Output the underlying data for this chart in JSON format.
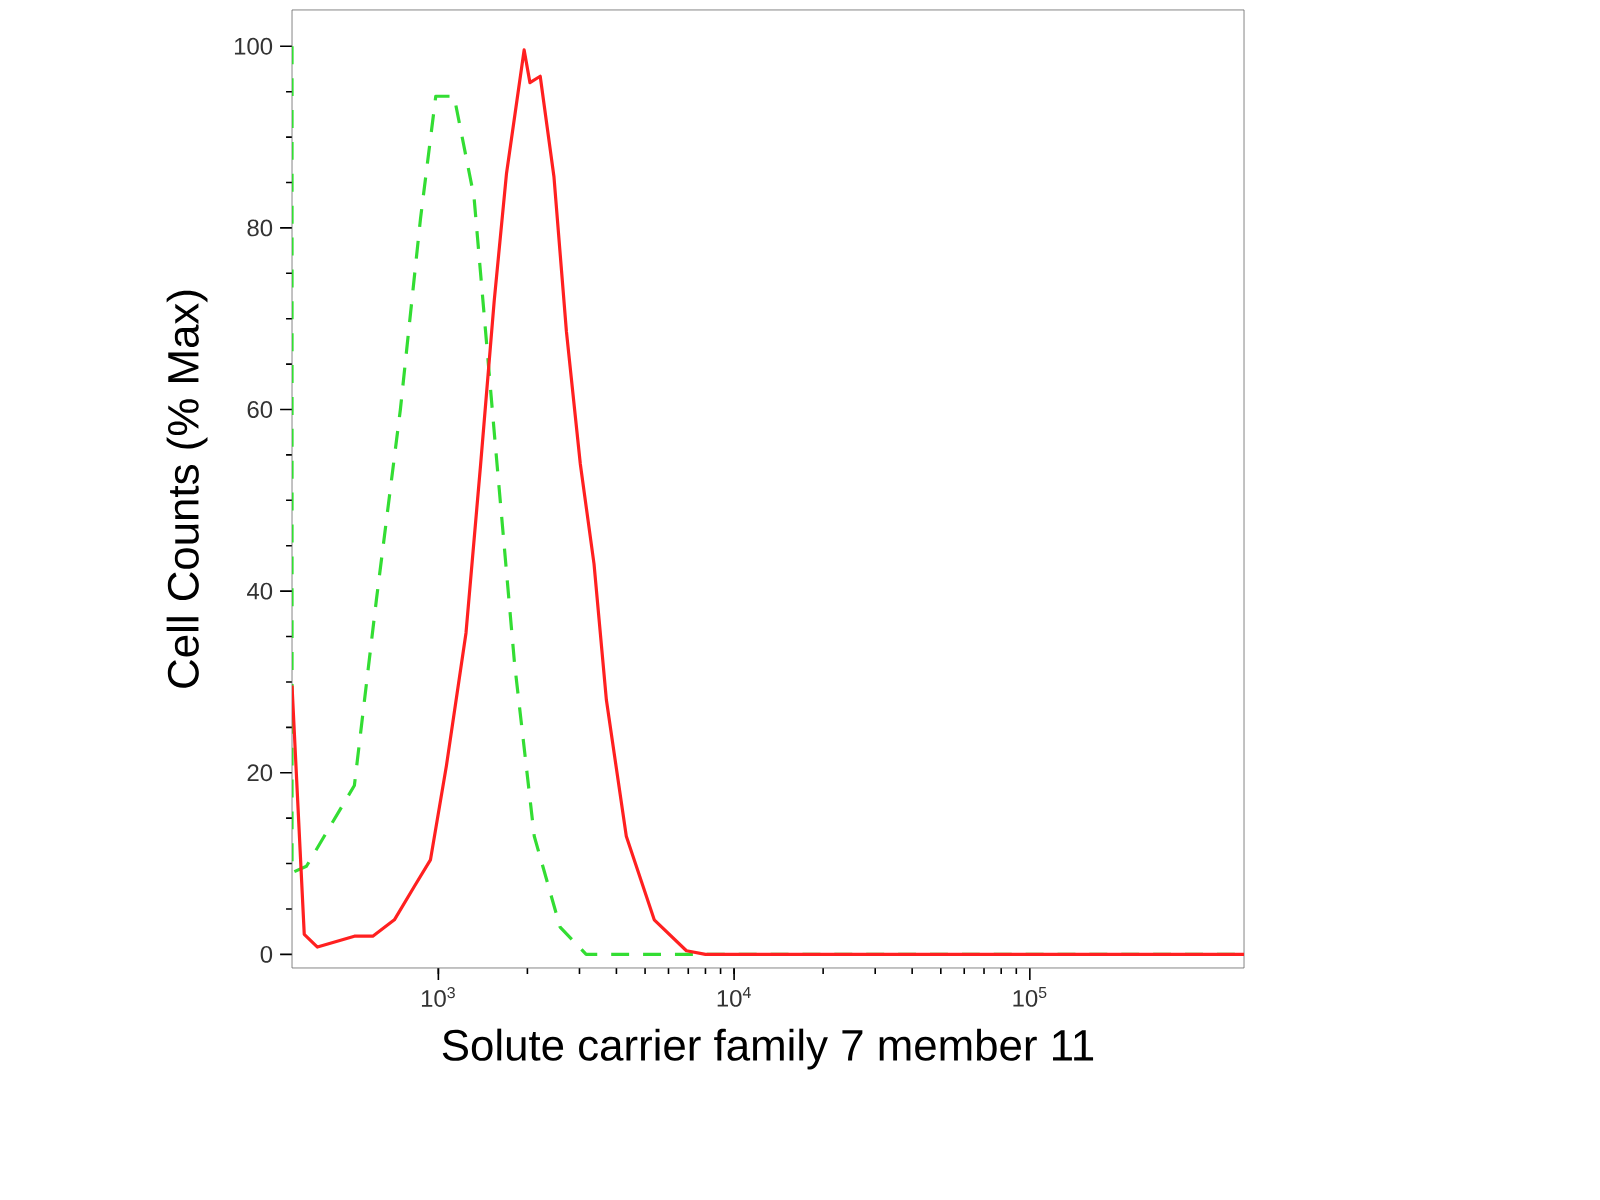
{
  "chart_data": {
    "type": "line",
    "xlabel": "Solute carrier family 7 member 11",
    "ylabel": "Cell Counts (% Max)",
    "log": "x",
    "xlim": [
      320,
      530000
    ],
    "ylim": [
      -1.5,
      104
    ],
    "xticks": [
      {
        "value": 1000,
        "label": "10$^{3}$"
      },
      {
        "value": 10000,
        "label": "10$^{4}$"
      },
      {
        "value": 100000,
        "label": "10$^{5}$"
      }
    ],
    "yticks": [
      0,
      20,
      40,
      60,
      80,
      100
    ],
    "grid": false,
    "marker": "none",
    "series": [
      {
        "color": "#33dd33",
        "line_style": "dashed",
        "x": [
          320,
          320,
          358,
          520,
          617,
          744,
          870,
          980,
          1130,
          1320,
          1545,
          1810,
          2110,
          2580,
          3160,
          530000
        ],
        "values": [
          100,
          9,
          9.7,
          18.6,
          39,
          60,
          81,
          94.5,
          94.5,
          83.4,
          57.5,
          32,
          13,
          3,
          0,
          0
        ]
      },
      {
        "color": "#ff2020",
        "line_style": "solid",
        "x": [
          320,
          352,
          390,
          520,
          600,
          710,
          830,
          940,
          1065,
          1240,
          1390,
          1545,
          1700,
          1950,
          2040,
          2210,
          2460,
          2710,
          3020,
          3360,
          3700,
          4320,
          5370,
          6900,
          8000,
          530000
        ],
        "values": [
          29.6,
          2.2,
          0.8,
          2,
          2,
          3.8,
          7.5,
          10.4,
          20.8,
          35.4,
          54,
          72,
          86,
          99.6,
          96,
          96.7,
          85.6,
          68.6,
          54,
          43,
          28,
          13,
          3.8,
          0.4,
          0,
          0
        ]
      }
    ]
  }
}
